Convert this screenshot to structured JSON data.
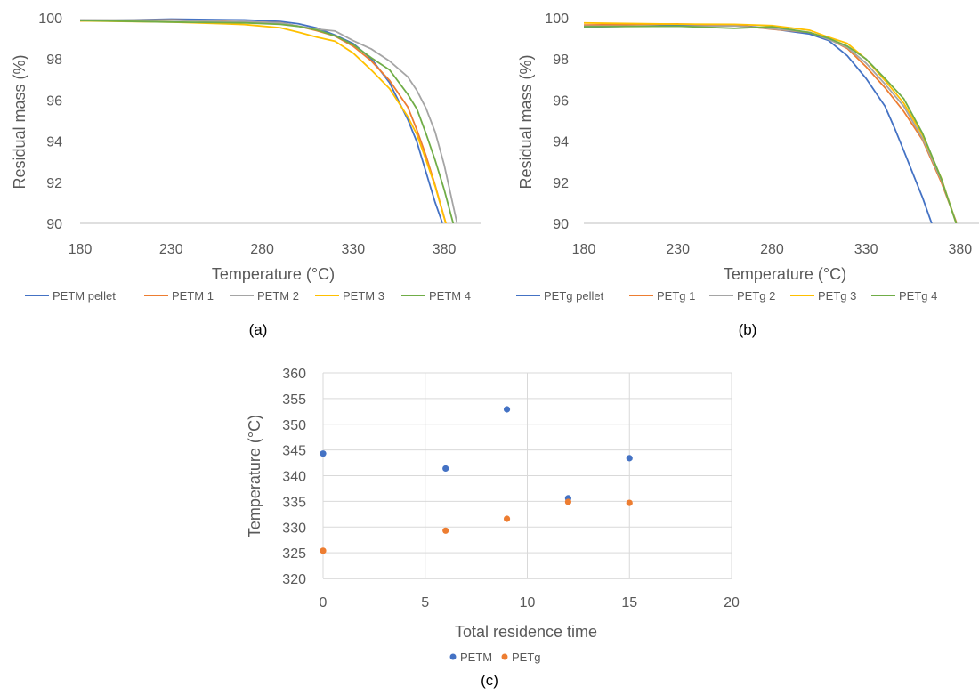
{
  "chart_data": [
    {
      "panel_label": "(a)",
      "type": "line",
      "xlabel": "Temperature (°C)",
      "ylabel": "Residual mass (%)",
      "xlim": [
        180,
        400
      ],
      "ylim": [
        90,
        100
      ],
      "x_ticks": [
        180,
        230,
        280,
        330,
        380
      ],
      "y_ticks": [
        90,
        92,
        94,
        96,
        98,
        100
      ],
      "grid": false,
      "legend_position": "bottom",
      "series": [
        {
          "name": "PETM pellet",
          "color": "#4472C4",
          "x": [
            180,
            230,
            270,
            290,
            300,
            310,
            320,
            330,
            340,
            350,
            360,
            365,
            370,
            375,
            379
          ],
          "y": [
            99.9,
            99.9,
            99.9,
            99.8,
            99.7,
            99.5,
            99.2,
            98.7,
            98.0,
            96.9,
            95.0,
            94.0,
            92.5,
            91.0,
            90.0
          ]
        },
        {
          "name": "PETM 1",
          "color": "#ED7D31",
          "x": [
            180,
            230,
            270,
            290,
            300,
            310,
            320,
            330,
            340,
            350,
            360,
            365,
            370,
            375,
            381
          ],
          "y": [
            99.9,
            99.9,
            99.8,
            99.7,
            99.6,
            99.4,
            99.1,
            98.6,
            97.9,
            97.0,
            95.6,
            94.6,
            93.3,
            91.8,
            90.0
          ]
        },
        {
          "name": "PETM 2",
          "color": "#A5A5A5",
          "x": [
            180,
            230,
            270,
            290,
            300,
            310,
            320,
            330,
            340,
            350,
            360,
            365,
            370,
            375,
            380,
            387
          ],
          "y": [
            99.9,
            99.9,
            99.8,
            99.7,
            99.6,
            99.5,
            99.3,
            98.9,
            98.5,
            97.9,
            97.1,
            96.5,
            95.6,
            94.4,
            92.9,
            90.0
          ]
        },
        {
          "name": "PETM 3",
          "color": "#FFC000",
          "x": [
            180,
            230,
            270,
            290,
            300,
            310,
            320,
            330,
            340,
            350,
            360,
            365,
            370,
            375,
            381
          ],
          "y": [
            99.8,
            99.8,
            99.7,
            99.5,
            99.3,
            99.1,
            98.8,
            98.3,
            97.5,
            96.5,
            95.2,
            94.3,
            93.1,
            91.8,
            90.0
          ]
        },
        {
          "name": "PETM 4",
          "color": "#70AD47",
          "x": [
            180,
            230,
            270,
            290,
            300,
            310,
            320,
            330,
            340,
            350,
            360,
            365,
            370,
            375,
            380,
            385
          ],
          "y": [
            99.8,
            99.8,
            99.8,
            99.7,
            99.6,
            99.4,
            99.1,
            98.7,
            98.1,
            97.4,
            96.3,
            95.5,
            94.4,
            93.1,
            91.6,
            90.0
          ]
        }
      ]
    },
    {
      "panel_label": "(b)",
      "type": "line",
      "xlabel": "Temperature (°C)",
      "ylabel": "Residual mass (%)",
      "xlim": [
        180,
        390
      ],
      "ylim": [
        90,
        100
      ],
      "x_ticks": [
        180,
        230,
        280,
        330,
        380
      ],
      "y_ticks": [
        90,
        92,
        94,
        96,
        98,
        100
      ],
      "grid": false,
      "legend_position": "bottom",
      "series": [
        {
          "name": "PETg pellet",
          "color": "#4472C4",
          "x": [
            180,
            230,
            260,
            280,
            300,
            310,
            320,
            330,
            340,
            345,
            350,
            355,
            360,
            365
          ],
          "y": [
            99.6,
            99.6,
            99.6,
            99.5,
            99.2,
            98.9,
            98.2,
            97.0,
            95.7,
            94.6,
            93.6,
            92.4,
            91.2,
            90.0
          ]
        },
        {
          "name": "PETg 1",
          "color": "#ED7D31",
          "x": [
            180,
            230,
            260,
            280,
            300,
            310,
            320,
            330,
            340,
            350,
            360,
            370,
            378
          ],
          "y": [
            99.7,
            99.7,
            99.6,
            99.5,
            99.3,
            99.0,
            98.5,
            97.6,
            96.6,
            95.5,
            94.0,
            92.0,
            90.0
          ]
        },
        {
          "name": "PETg 2",
          "color": "#A5A5A5",
          "x": [
            180,
            230,
            260,
            280,
            300,
            310,
            320,
            330,
            340,
            350,
            360,
            370,
            378
          ],
          "y": [
            99.6,
            99.6,
            99.6,
            99.5,
            99.3,
            99.0,
            98.5,
            97.8,
            96.8,
            95.7,
            94.1,
            92.1,
            90.0
          ]
        },
        {
          "name": "PETg 3",
          "color": "#FFC000",
          "x": [
            180,
            230,
            260,
            280,
            300,
            310,
            320,
            330,
            340,
            350,
            360,
            370,
            378
          ],
          "y": [
            99.7,
            99.7,
            99.7,
            99.6,
            99.4,
            99.1,
            98.7,
            98.0,
            97.0,
            95.8,
            94.3,
            92.2,
            90.0
          ]
        },
        {
          "name": "PETg 4",
          "color": "#70AD47",
          "x": [
            180,
            230,
            260,
            280,
            300,
            310,
            320,
            330,
            340,
            350,
            360,
            370,
            378
          ],
          "y": [
            99.5,
            99.6,
            99.5,
            99.5,
            99.3,
            99.0,
            98.6,
            98.0,
            97.1,
            96.0,
            94.4,
            92.2,
            90.0
          ]
        }
      ]
    },
    {
      "panel_label": "(c)",
      "type": "scatter",
      "xlabel": "Total residence time",
      "ylabel": "Temperature (°C)",
      "xlim": [
        0,
        20
      ],
      "ylim": [
        320,
        360
      ],
      "x_ticks": [
        0,
        5,
        10,
        15,
        20
      ],
      "y_ticks": [
        320,
        325,
        330,
        335,
        340,
        345,
        350,
        355,
        360
      ],
      "grid": true,
      "legend_position": "bottom",
      "series": [
        {
          "name": "PETM",
          "color": "#4472C4",
          "x": [
            0,
            6,
            9,
            12,
            15
          ],
          "y": [
            344.3,
            341.4,
            352.9,
            335.6,
            343.4
          ]
        },
        {
          "name": "PETg",
          "color": "#ED7D31",
          "x": [
            0,
            6,
            9,
            12,
            15
          ],
          "y": [
            325.4,
            329.3,
            331.6,
            334.9,
            334.7
          ]
        }
      ]
    }
  ]
}
